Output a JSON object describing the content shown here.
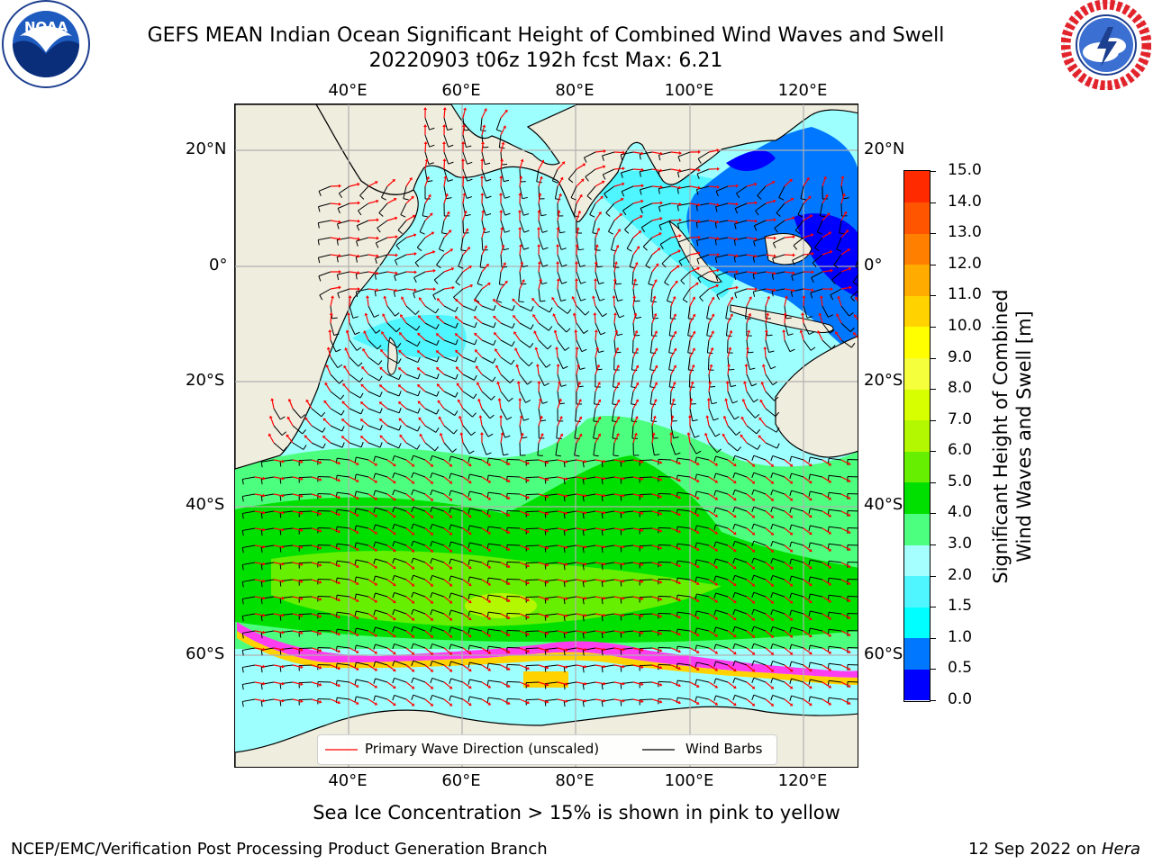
{
  "header": {
    "title_line1": "GEFS MEAN Indian Ocean Significant Height of Combined Wind Waves and Swell",
    "title_line2": "20220903 t06z 192h fcst   Max: 6.21"
  },
  "logos": {
    "left": {
      "text": "NOAA",
      "ring_text": "NATIONAL OCEANIC AND ATMOSPHERIC ADMINISTRATION · U.S. DEPARTMENT OF COMMERCE",
      "icon": "noaa-logo"
    },
    "right": {
      "ring_text": "NATIONAL WEATHER SERVICE",
      "icon": "nws-logo"
    }
  },
  "map": {
    "lon_labels": [
      "40°E",
      "60°E",
      "80°E",
      "100°E",
      "120°E"
    ],
    "lat_labels_left": [
      "20°N",
      "0°",
      "20°S",
      "40°S",
      "60°S"
    ],
    "lat_labels_right": [
      "20°N",
      "0°",
      "20°S",
      "40°S",
      "60°S"
    ],
    "colors": {
      "land": "#efedde",
      "ocean_low": "#9effff",
      "ice": "#ff3df0",
      "grid": "#b0b0b0",
      "barb": "#000000",
      "arrow": "#ff0000"
    }
  },
  "colorbar": {
    "label_line1": "Significant Height of Combined",
    "label_line2": "Wind Waves and Swell [m]",
    "ticks": [
      "15.0",
      "14.0",
      "13.0",
      "12.0",
      "11.0",
      "10.0",
      "9.0",
      "8.0",
      "7.0",
      "6.0",
      "5.0",
      "4.0",
      "3.0",
      "2.0",
      "1.5",
      "1.0",
      "0.5",
      "0.0"
    ],
    "levels": [
      0,
      0.5,
      1.0,
      1.5,
      2.0,
      3.0,
      4.0,
      5.0,
      6.0,
      7.0,
      8.0,
      9.0,
      10.0,
      11.0,
      12.0,
      13.0,
      14.0,
      15.0
    ],
    "colors": [
      "#0000ff",
      "#0077ff",
      "#00ffff",
      "#4ff5ff",
      "#a6ffff",
      "#4dff7e",
      "#00e000",
      "#66ef00",
      "#b3f700",
      "#d8ff00",
      "#f5ff3b",
      "#ffff00",
      "#ffd200",
      "#ffab00",
      "#ff8000",
      "#ff5500",
      "#ff2a00"
    ]
  },
  "legend": {
    "wave_label": "Primary Wave Direction (unscaled)",
    "barb_label": "Wind Barbs"
  },
  "annotation": "Sea Ice Concentration > 15% is shown in pink to yellow",
  "footer": {
    "left": "NCEP/EMC/Verification Post Processing Product Generation Branch",
    "right_date": "12 Sep 2022 on ",
    "right_host": "Hera"
  }
}
